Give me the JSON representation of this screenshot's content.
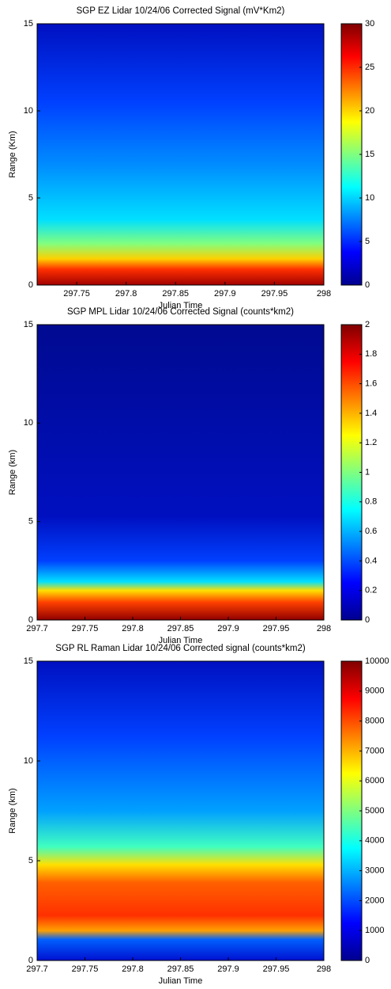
{
  "chart_data": [
    {
      "type": "heatmap",
      "title": "SGP EZ Lidar 10/24/06 Corrected Signal (mV*Km2)",
      "xlabel": "Julian Time",
      "ylabel": "Range (Km)",
      "xlim": [
        297.71,
        298
      ],
      "xticks": [
        297.75,
        297.8,
        297.85,
        297.9,
        297.95,
        298
      ],
      "ylim": [
        0,
        15
      ],
      "yticks": [
        0,
        5,
        10,
        15
      ],
      "clim": [
        0,
        30
      ],
      "cticks": [
        0,
        5,
        10,
        15,
        20,
        25,
        30
      ]
    },
    {
      "type": "heatmap",
      "title": "SGP MPL Lidar 10/24/06 Corrected Signal (counts*km2)",
      "xlabel": "Julian Time",
      "ylabel": "Range (km)",
      "xlim": [
        297.7,
        298
      ],
      "xticks": [
        297.7,
        297.75,
        297.8,
        297.85,
        297.9,
        297.95,
        298
      ],
      "ylim": [
        0,
        15
      ],
      "yticks": [
        0,
        5,
        10,
        15
      ],
      "clim": [
        0,
        2
      ],
      "cticks": [
        0,
        0.2,
        0.4,
        0.6,
        0.8,
        1,
        1.2,
        1.4,
        1.6,
        1.8,
        2
      ]
    },
    {
      "type": "heatmap",
      "title": "SGP RL Raman Lidar 10/24/06 Corrected signal (counts*km2)",
      "xlabel": "Julian Time",
      "ylabel": "Range (km)",
      "xlim": [
        297.7,
        298
      ],
      "xticks": [
        297.7,
        297.75,
        297.8,
        297.85,
        297.9,
        297.95,
        298
      ],
      "ylim": [
        0,
        15
      ],
      "yticks": [
        0,
        5,
        10,
        15
      ],
      "clim": [
        0,
        10000
      ],
      "cticks": [
        0,
        1000,
        2000,
        3000,
        4000,
        5000,
        6000,
        7000,
        8000,
        9000,
        10000
      ]
    }
  ]
}
